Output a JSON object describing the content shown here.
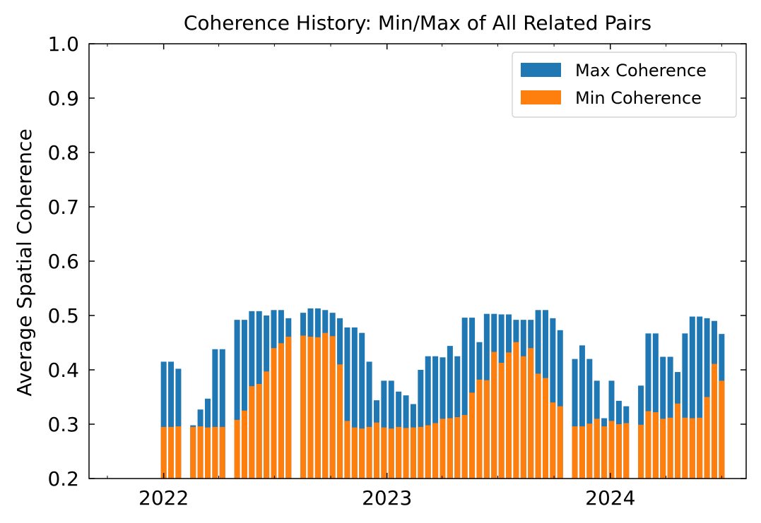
{
  "chart_data": {
    "type": "bar",
    "stacked_overlay": true,
    "title": "Coherence History: Min/Max of All Related Pairs",
    "xlabel": "",
    "ylabel": "Average Spatial Coherence",
    "ylim": [
      0.2,
      1.0
    ],
    "yticks": [
      "0.2",
      "0.3",
      "0.4",
      "0.5",
      "0.6",
      "0.7",
      "0.8",
      "0.9",
      "1.0"
    ],
    "xlim": [
      "2021-09-01",
      "2024-08-10"
    ],
    "xticks": [
      {
        "date": "2022-01-01",
        "label": "2022"
      },
      {
        "date": "2023-01-01",
        "label": "2023"
      },
      {
        "date": "2024-01-01",
        "label": "2024"
      }
    ],
    "grid": false,
    "legend": {
      "position": "top-right"
    },
    "series": [
      {
        "name": "Max Coherence",
        "color": "#1f77b4",
        "points": [
          [
            "2022-01-01",
            0.415
          ],
          [
            "2022-01-13",
            0.415
          ],
          [
            "2022-01-25",
            0.402
          ],
          [
            "2022-02-18",
            0.298
          ],
          [
            "2022-03-02",
            0.327
          ],
          [
            "2022-03-14",
            0.347
          ],
          [
            "2022-03-26",
            0.438
          ],
          [
            "2022-04-07",
            0.438
          ],
          [
            "2022-05-01",
            0.492
          ],
          [
            "2022-05-13",
            0.492
          ],
          [
            "2022-05-25",
            0.508
          ],
          [
            "2022-06-06",
            0.508
          ],
          [
            "2022-06-18",
            0.5
          ],
          [
            "2022-06-30",
            0.51
          ],
          [
            "2022-07-12",
            0.51
          ],
          [
            "2022-07-24",
            0.495
          ],
          [
            "2022-08-17",
            0.505
          ],
          [
            "2022-08-29",
            0.513
          ],
          [
            "2022-09-10",
            0.513
          ],
          [
            "2022-09-22",
            0.51
          ],
          [
            "2022-10-04",
            0.505
          ],
          [
            "2022-10-16",
            0.495
          ],
          [
            "2022-10-28",
            0.478
          ],
          [
            "2022-11-09",
            0.478
          ],
          [
            "2022-11-21",
            0.468
          ],
          [
            "2022-12-03",
            0.415
          ],
          [
            "2022-12-15",
            0.344
          ],
          [
            "2022-12-27",
            0.38
          ],
          [
            "2023-01-08",
            0.38
          ],
          [
            "2023-01-20",
            0.36
          ],
          [
            "2023-02-01",
            0.353
          ],
          [
            "2023-02-13",
            0.337
          ],
          [
            "2023-02-25",
            0.4
          ],
          [
            "2023-03-09",
            0.425
          ],
          [
            "2023-03-21",
            0.425
          ],
          [
            "2023-04-02",
            0.423
          ],
          [
            "2023-04-14",
            0.444
          ],
          [
            "2023-04-26",
            0.425
          ],
          [
            "2023-05-08",
            0.496
          ],
          [
            "2023-05-20",
            0.496
          ],
          [
            "2023-06-01",
            0.451
          ],
          [
            "2023-06-13",
            0.503
          ],
          [
            "2023-06-25",
            0.503
          ],
          [
            "2023-07-07",
            0.502
          ],
          [
            "2023-07-19",
            0.502
          ],
          [
            "2023-07-31",
            0.492
          ],
          [
            "2023-08-12",
            0.492
          ],
          [
            "2023-08-24",
            0.492
          ],
          [
            "2023-09-05",
            0.51
          ],
          [
            "2023-09-17",
            0.51
          ],
          [
            "2023-09-29",
            0.495
          ],
          [
            "2023-10-11",
            0.473
          ],
          [
            "2023-11-04",
            0.42
          ],
          [
            "2023-11-16",
            0.445
          ],
          [
            "2023-11-28",
            0.42
          ],
          [
            "2023-12-10",
            0.38
          ],
          [
            "2023-12-22",
            0.311
          ],
          [
            "2024-01-03",
            0.38
          ],
          [
            "2024-01-15",
            0.343
          ],
          [
            "2024-01-27",
            0.333
          ],
          [
            "2024-02-20",
            0.371
          ],
          [
            "2024-03-03",
            0.467
          ],
          [
            "2024-03-15",
            0.467
          ],
          [
            "2024-03-27",
            0.424
          ],
          [
            "2024-04-08",
            0.424
          ],
          [
            "2024-04-20",
            0.396
          ],
          [
            "2024-05-02",
            0.467
          ],
          [
            "2024-05-14",
            0.498
          ],
          [
            "2024-05-26",
            0.498
          ],
          [
            "2024-06-07",
            0.495
          ],
          [
            "2024-06-19",
            0.49
          ],
          [
            "2024-07-01",
            0.466
          ]
        ]
      },
      {
        "name": "Min Coherence",
        "color": "#ff7f0e",
        "points": [
          [
            "2022-01-01",
            0.295
          ],
          [
            "2022-01-13",
            0.295
          ],
          [
            "2022-01-25",
            0.296
          ],
          [
            "2022-02-18",
            0.295
          ],
          [
            "2022-03-02",
            0.296
          ],
          [
            "2022-03-14",
            0.294
          ],
          [
            "2022-03-26",
            0.295
          ],
          [
            "2022-04-07",
            0.295
          ],
          [
            "2022-05-01",
            0.308
          ],
          [
            "2022-05-13",
            0.325
          ],
          [
            "2022-05-25",
            0.37
          ],
          [
            "2022-06-06",
            0.374
          ],
          [
            "2022-06-18",
            0.397
          ],
          [
            "2022-06-30",
            0.44
          ],
          [
            "2022-07-12",
            0.449
          ],
          [
            "2022-07-24",
            0.461
          ],
          [
            "2022-08-17",
            0.463
          ],
          [
            "2022-08-29",
            0.461
          ],
          [
            "2022-09-10",
            0.46
          ],
          [
            "2022-09-22",
            0.468
          ],
          [
            "2022-10-04",
            0.462
          ],
          [
            "2022-10-16",
            0.41
          ],
          [
            "2022-10-28",
            0.306
          ],
          [
            "2022-11-09",
            0.294
          ],
          [
            "2022-11-21",
            0.292
          ],
          [
            "2022-12-03",
            0.295
          ],
          [
            "2022-12-15",
            0.303
          ],
          [
            "2022-12-27",
            0.294
          ],
          [
            "2023-01-08",
            0.292
          ],
          [
            "2023-01-20",
            0.295
          ],
          [
            "2023-02-01",
            0.293
          ],
          [
            "2023-02-13",
            0.294
          ],
          [
            "2023-02-25",
            0.295
          ],
          [
            "2023-03-09",
            0.298
          ],
          [
            "2023-03-21",
            0.302
          ],
          [
            "2023-04-02",
            0.31
          ],
          [
            "2023-04-14",
            0.311
          ],
          [
            "2023-04-26",
            0.313
          ],
          [
            "2023-05-08",
            0.317
          ],
          [
            "2023-05-20",
            0.358
          ],
          [
            "2023-06-01",
            0.382
          ],
          [
            "2023-06-13",
            0.381
          ],
          [
            "2023-06-25",
            0.433
          ],
          [
            "2023-07-07",
            0.413
          ],
          [
            "2023-07-19",
            0.432
          ],
          [
            "2023-07-31",
            0.451
          ],
          [
            "2023-08-12",
            0.425
          ],
          [
            "2023-08-24",
            0.44
          ],
          [
            "2023-09-05",
            0.393
          ],
          [
            "2023-09-17",
            0.385
          ],
          [
            "2023-09-29",
            0.34
          ],
          [
            "2023-10-11",
            0.333
          ],
          [
            "2023-11-04",
            0.296
          ],
          [
            "2023-11-16",
            0.296
          ],
          [
            "2023-11-28",
            0.301
          ],
          [
            "2023-12-10",
            0.31
          ],
          [
            "2023-12-22",
            0.296
          ],
          [
            "2024-01-03",
            0.306
          ],
          [
            "2024-01-15",
            0.3
          ],
          [
            "2024-01-27",
            0.302
          ],
          [
            "2024-02-20",
            0.299
          ],
          [
            "2024-03-03",
            0.324
          ],
          [
            "2024-03-15",
            0.322
          ],
          [
            "2024-03-27",
            0.31
          ],
          [
            "2024-04-08",
            0.312
          ],
          [
            "2024-04-20",
            0.338
          ],
          [
            "2024-05-02",
            0.312
          ],
          [
            "2024-05-14",
            0.311
          ],
          [
            "2024-05-26",
            0.312
          ],
          [
            "2024-06-07",
            0.35
          ],
          [
            "2024-06-19",
            0.411
          ],
          [
            "2024-07-01",
            0.38
          ]
        ]
      }
    ]
  }
}
